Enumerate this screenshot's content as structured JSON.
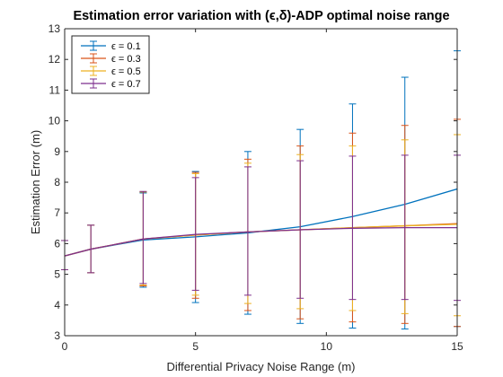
{
  "chart_data": {
    "type": "line",
    "title": "Estimation error variation with (ϵ,δ)-ADP optimal noise range",
    "xlabel": "Differential Privacy Noise Range (m)",
    "ylabel": "Estimation Error (m)",
    "xlim": [
      0,
      15
    ],
    "ylim": [
      3,
      13
    ],
    "xticks": [
      0,
      5,
      10,
      15
    ],
    "yticks": [
      3,
      4,
      5,
      6,
      7,
      8,
      9,
      10,
      11,
      12,
      13
    ],
    "grid": false,
    "legend_position": "top-left",
    "error_bars": true,
    "x": [
      0,
      1,
      3,
      5,
      7,
      9,
      11,
      13,
      15
    ],
    "series": [
      {
        "name": "ϵ = 0.1",
        "color": "#0072BD",
        "y": [
          5.6,
          5.82,
          6.12,
          6.22,
          6.35,
          6.55,
          6.88,
          7.28,
          7.78
        ],
        "lower": [
          5.15,
          5.05,
          4.58,
          4.08,
          3.7,
          3.4,
          3.25,
          3.22,
          3.3
        ],
        "upper": [
          6.1,
          6.6,
          7.65,
          8.35,
          9.0,
          9.72,
          10.55,
          11.42,
          12.28
        ]
      },
      {
        "name": "ϵ = 0.3",
        "color": "#D95319",
        "y": [
          5.6,
          5.82,
          6.15,
          6.28,
          6.38,
          6.45,
          6.52,
          6.58,
          6.65
        ],
        "lower": [
          5.15,
          5.05,
          4.62,
          4.22,
          3.82,
          3.55,
          3.45,
          3.4,
          3.3
        ],
        "upper": [
          6.1,
          6.6,
          7.68,
          8.32,
          8.75,
          9.18,
          9.6,
          9.85,
          10.05
        ]
      },
      {
        "name": "ϵ = 0.5",
        "color": "#EDB120",
        "y": [
          5.6,
          5.82,
          6.15,
          6.28,
          6.38,
          6.45,
          6.52,
          6.58,
          6.63
        ],
        "lower": [
          5.15,
          5.05,
          4.65,
          4.32,
          4.05,
          3.88,
          3.82,
          3.72,
          3.65
        ],
        "upper": [
          6.1,
          6.6,
          7.68,
          8.28,
          8.62,
          8.9,
          9.18,
          9.38,
          9.55
        ]
      },
      {
        "name": "ϵ = 0.7",
        "color": "#7E2F8E",
        "y": [
          5.6,
          5.82,
          6.15,
          6.3,
          6.38,
          6.45,
          6.5,
          6.52,
          6.52
        ],
        "lower": [
          5.15,
          5.05,
          4.7,
          4.48,
          4.32,
          4.22,
          4.18,
          4.18,
          4.15
        ],
        "upper": [
          6.1,
          6.6,
          7.7,
          8.15,
          8.5,
          8.7,
          8.85,
          8.88,
          8.88
        ]
      }
    ]
  }
}
